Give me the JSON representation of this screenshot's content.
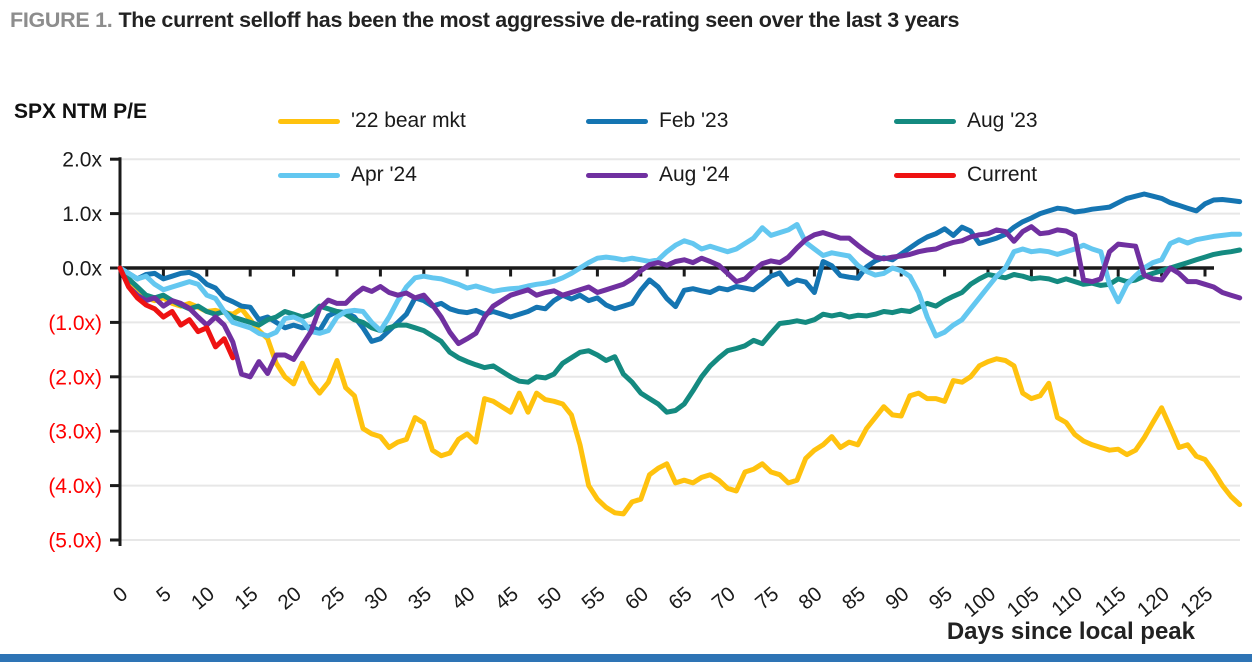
{
  "figure": {
    "label": "FIGURE 1.",
    "title": "The current selloff has been the most aggressive de-rating seen over the last 3 years"
  },
  "colors": {
    "axis": "#1a1a1a",
    "negative_tick": "#ff0000",
    "grid": "#e7e7e7",
    "figure_label": "#8d8d8d",
    "title_text": "#222222",
    "footer_bar": "#2e74b5",
    "background": "#ffffff"
  },
  "chart_data": {
    "type": "line",
    "y_axis_title": "SPX NTM P/E",
    "x_axis_title": "Days since local peak",
    "x_start_day": 0,
    "x_step_days": 1,
    "xlim": [
      0,
      130
    ],
    "ylim": [
      -5,
      2
    ],
    "grid": true,
    "legend_position": "top",
    "x_ticks": [
      0,
      5,
      10,
      15,
      20,
      25,
      30,
      35,
      40,
      45,
      50,
      55,
      60,
      65,
      70,
      75,
      80,
      85,
      90,
      95,
      100,
      105,
      110,
      115,
      120,
      125
    ],
    "y_ticks": [
      {
        "v": 2,
        "label": "2.0x"
      },
      {
        "v": 1,
        "label": "1.0x"
      },
      {
        "v": 0,
        "label": "0.0x"
      },
      {
        "v": -1,
        "label": "(1.0x)"
      },
      {
        "v": -2,
        "label": "(2.0x)"
      },
      {
        "v": -3,
        "label": "(3.0x)"
      },
      {
        "v": -4,
        "label": "(4.0x)"
      },
      {
        "v": -5,
        "label": "(5.0x)"
      }
    ],
    "series": [
      {
        "name": "'22 bear mkt",
        "color": "#ffc20e",
        "values": [
          0,
          -0.25,
          -0.45,
          -0.55,
          -0.6,
          -0.55,
          -0.65,
          -0.7,
          -0.65,
          -0.72,
          -0.8,
          -0.78,
          -0.82,
          -0.85,
          -0.75,
          -0.95,
          -1.15,
          -1.3,
          -1.75,
          -2.0,
          -2.13,
          -1.75,
          -2.1,
          -2.3,
          -2.1,
          -1.7,
          -2.2,
          -2.35,
          -2.95,
          -3.05,
          -3.1,
          -3.3,
          -3.2,
          -3.15,
          -2.75,
          -2.85,
          -3.35,
          -3.45,
          -3.4,
          -3.15,
          -3.05,
          -3.2,
          -2.4,
          -2.45,
          -2.55,
          -2.65,
          -2.3,
          -2.65,
          -2.3,
          -2.42,
          -2.45,
          -2.5,
          -2.7,
          -3.25,
          -4.0,
          -4.25,
          -4.4,
          -4.5,
          -4.52,
          -4.3,
          -4.25,
          -3.8,
          -3.68,
          -3.6,
          -3.95,
          -3.9,
          -3.95,
          -3.85,
          -3.8,
          -3.9,
          -4.05,
          -4.1,
          -3.75,
          -3.7,
          -3.6,
          -3.75,
          -3.8,
          -3.95,
          -3.9,
          -3.5,
          -3.35,
          -3.25,
          -3.1,
          -3.3,
          -3.2,
          -3.25,
          -2.95,
          -2.75,
          -2.55,
          -2.7,
          -2.72,
          -2.35,
          -2.3,
          -2.4,
          -2.4,
          -2.45,
          -2.07,
          -2.1,
          -2.0,
          -1.8,
          -1.72,
          -1.67,
          -1.7,
          -1.8,
          -2.3,
          -2.4,
          -2.35,
          -2.12,
          -2.75,
          -2.84,
          -3.06,
          -3.18,
          -3.25,
          -3.3,
          -3.35,
          -3.33,
          -3.43,
          -3.35,
          -3.12,
          -2.84,
          -2.57,
          -2.93,
          -3.3,
          -3.25,
          -3.46,
          -3.52,
          -3.74,
          -4.0,
          -4.2,
          -4.35
        ]
      },
      {
        "name": "Feb '23",
        "color": "#1575b2",
        "values": [
          0,
          -0.1,
          -0.2,
          -0.12,
          -0.1,
          -0.2,
          -0.15,
          -0.1,
          -0.08,
          -0.15,
          -0.3,
          -0.37,
          -0.55,
          -0.62,
          -0.7,
          -0.72,
          -0.95,
          -0.9,
          -1.0,
          -1.1,
          -1.05,
          -1.1,
          -1.08,
          -1.15,
          -0.88,
          -0.8,
          -0.82,
          -0.9,
          -1.1,
          -1.35,
          -1.3,
          -1.15,
          -1.0,
          -0.85,
          -0.55,
          -0.6,
          -0.7,
          -0.65,
          -0.75,
          -0.8,
          -0.82,
          -0.78,
          -0.85,
          -0.8,
          -0.85,
          -0.9,
          -0.85,
          -0.8,
          -0.72,
          -0.75,
          -0.6,
          -0.5,
          -0.57,
          -0.5,
          -0.6,
          -0.55,
          -0.68,
          -0.75,
          -0.7,
          -0.65,
          -0.41,
          -0.22,
          -0.35,
          -0.56,
          -0.71,
          -0.41,
          -0.38,
          -0.42,
          -0.45,
          -0.37,
          -0.4,
          -0.34,
          -0.37,
          -0.4,
          -0.28,
          -0.15,
          -0.09,
          -0.3,
          -0.22,
          -0.26,
          -0.45,
          0.12,
          0.04,
          -0.14,
          -0.17,
          -0.19,
          0.02,
          0.13,
          0.19,
          0.15,
          0.26,
          0.37,
          0.48,
          0.57,
          0.63,
          0.72,
          0.6,
          0.75,
          0.68,
          0.45,
          0.5,
          0.55,
          0.62,
          0.75,
          0.85,
          0.92,
          1.0,
          1.05,
          1.1,
          1.08,
          1.03,
          1.05,
          1.08,
          1.1,
          1.12,
          1.2,
          1.28,
          1.32,
          1.36,
          1.32,
          1.28,
          1.2,
          1.15,
          1.1,
          1.05,
          1.18,
          1.25,
          1.26,
          1.24,
          1.22
        ]
      },
      {
        "name": "Aug '23",
        "color": "#148a80",
        "values": [
          0,
          -0.2,
          -0.35,
          -0.5,
          -0.55,
          -0.5,
          -0.6,
          -0.68,
          -0.75,
          -0.7,
          -0.8,
          -0.85,
          -0.8,
          -0.9,
          -0.95,
          -1.0,
          -1.05,
          -0.95,
          -0.9,
          -0.8,
          -0.85,
          -0.9,
          -0.85,
          -0.7,
          -0.75,
          -0.8,
          -0.85,
          -0.95,
          -1.0,
          -1.1,
          -1.15,
          -1.1,
          -1.05,
          -1.05,
          -1.1,
          -1.15,
          -1.25,
          -1.35,
          -1.55,
          -1.65,
          -1.72,
          -1.78,
          -1.83,
          -1.8,
          -1.9,
          -2.0,
          -2.08,
          -2.1,
          -2.0,
          -2.02,
          -1.95,
          -1.75,
          -1.65,
          -1.55,
          -1.52,
          -1.6,
          -1.7,
          -1.63,
          -1.95,
          -2.1,
          -2.3,
          -2.4,
          -2.5,
          -2.65,
          -2.62,
          -2.5,
          -2.26,
          -2.0,
          -1.8,
          -1.65,
          -1.52,
          -1.48,
          -1.43,
          -1.33,
          -1.39,
          -1.2,
          -1.02,
          -1.0,
          -0.97,
          -1.0,
          -0.95,
          -0.85,
          -0.88,
          -0.85,
          -0.9,
          -0.87,
          -0.88,
          -0.85,
          -0.8,
          -0.82,
          -0.78,
          -0.8,
          -0.72,
          -0.65,
          -0.7,
          -0.6,
          -0.52,
          -0.45,
          -0.3,
          -0.2,
          -0.12,
          -0.15,
          -0.18,
          -0.12,
          -0.15,
          -0.2,
          -0.18,
          -0.2,
          -0.25,
          -0.2,
          -0.25,
          -0.3,
          -0.28,
          -0.32,
          -0.3,
          -0.2,
          -0.25,
          -0.22,
          -0.15,
          -0.1,
          -0.05,
          0.0,
          0.05,
          0.1,
          0.15,
          0.2,
          0.25,
          0.28,
          0.3,
          0.33
        ]
      },
      {
        "name": "Apr '24",
        "color": "#63c7f0",
        "values": [
          0,
          -0.1,
          -0.2,
          -0.15,
          -0.3,
          -0.4,
          -0.35,
          -0.3,
          -0.25,
          -0.3,
          -0.5,
          -0.56,
          -0.8,
          -1.0,
          -1.05,
          -1.1,
          -1.2,
          -1.25,
          -1.18,
          -0.93,
          -0.9,
          -0.97,
          -1.17,
          -1.2,
          -1.15,
          -0.9,
          -0.8,
          -0.78,
          -0.8,
          -1.0,
          -1.15,
          -0.9,
          -0.6,
          -0.35,
          -0.18,
          -0.15,
          -0.18,
          -0.2,
          -0.25,
          -0.3,
          -0.37,
          -0.33,
          -0.38,
          -0.43,
          -0.4,
          -0.38,
          -0.37,
          -0.33,
          -0.3,
          -0.28,
          -0.24,
          -0.18,
          -0.1,
          0.0,
          0.1,
          0.18,
          0.2,
          0.18,
          0.15,
          0.18,
          0.15,
          0.12,
          0.15,
          0.3,
          0.42,
          0.5,
          0.45,
          0.35,
          0.4,
          0.35,
          0.3,
          0.35,
          0.45,
          0.55,
          0.74,
          0.6,
          0.65,
          0.7,
          0.8,
          0.47,
          0.35,
          0.23,
          0.28,
          0.25,
          0.22,
          0.05,
          -0.06,
          -0.13,
          -0.1,
          0.0,
          -0.05,
          -0.15,
          -0.45,
          -0.9,
          -1.25,
          -1.18,
          -1.05,
          -0.95,
          -0.75,
          -0.55,
          -0.35,
          -0.15,
          0.0,
          0.3,
          0.35,
          0.3,
          0.32,
          0.3,
          0.25,
          0.3,
          0.35,
          0.42,
          0.35,
          0.3,
          -0.3,
          -0.62,
          -0.3,
          -0.14,
          0.0,
          0.1,
          0.15,
          0.45,
          0.52,
          0.46,
          0.52,
          0.55,
          0.58,
          0.6,
          0.62,
          0.62
        ]
      },
      {
        "name": "Aug '24",
        "color": "#7030a0",
        "values": [
          0,
          -0.35,
          -0.5,
          -0.6,
          -0.55,
          -0.7,
          -0.6,
          -0.65,
          -0.74,
          -0.9,
          -1.05,
          -0.9,
          -1.05,
          -1.36,
          -1.95,
          -2.0,
          -1.72,
          -1.94,
          -1.6,
          -1.6,
          -1.68,
          -1.42,
          -1.17,
          -0.74,
          -0.59,
          -0.65,
          -0.65,
          -0.49,
          -0.37,
          -0.43,
          -0.34,
          -0.45,
          -0.5,
          -0.46,
          -0.55,
          -0.5,
          -0.68,
          -0.9,
          -1.18,
          -1.39,
          -1.3,
          -1.2,
          -0.9,
          -0.7,
          -0.6,
          -0.5,
          -0.45,
          -0.4,
          -0.5,
          -0.45,
          -0.42,
          -0.5,
          -0.45,
          -0.4,
          -0.35,
          -0.45,
          -0.4,
          -0.35,
          -0.3,
          -0.2,
          -0.05,
          0.06,
          0.1,
          0.05,
          0.12,
          0.15,
          0.1,
          0.18,
          0.12,
          0.05,
          -0.1,
          -0.25,
          -0.2,
          -0.05,
          0.08,
          0.13,
          0.1,
          0.2,
          0.37,
          0.52,
          0.61,
          0.65,
          0.6,
          0.55,
          0.55,
          0.42,
          0.3,
          0.2,
          0.17,
          0.2,
          0.22,
          0.25,
          0.3,
          0.33,
          0.35,
          0.42,
          0.47,
          0.5,
          0.57,
          0.61,
          0.63,
          0.7,
          0.67,
          0.49,
          0.67,
          0.76,
          0.63,
          0.65,
          0.7,
          0.68,
          0.6,
          -0.22,
          -0.25,
          -0.2,
          0.3,
          0.44,
          0.42,
          0.4,
          -0.13,
          -0.2,
          -0.22,
          0.0,
          -0.1,
          -0.25,
          -0.25,
          -0.3,
          -0.35,
          -0.45,
          -0.5,
          -0.55
        ]
      },
      {
        "name": "Current",
        "color": "#ee1212",
        "values": [
          0,
          -0.35,
          -0.55,
          -0.68,
          -0.75,
          -0.9,
          -0.8,
          -1.05,
          -0.95,
          -1.17,
          -1.1,
          -1.45,
          -1.3,
          -1.65
        ]
      }
    ]
  }
}
